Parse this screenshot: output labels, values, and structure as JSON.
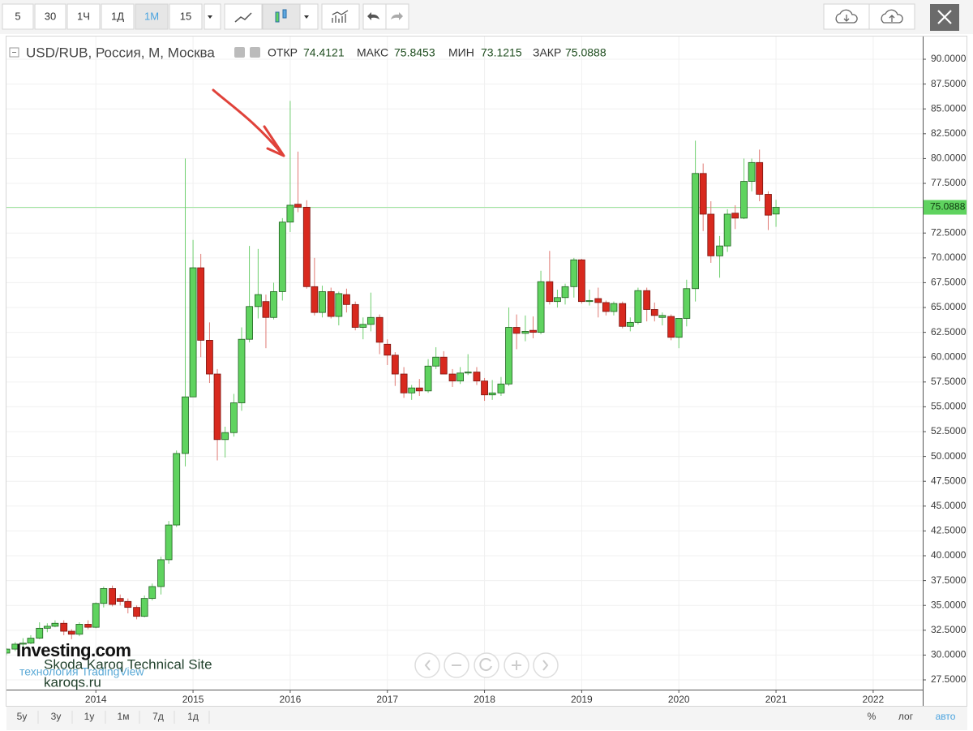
{
  "chart_data": {
    "type": "candlestick",
    "title": "USD/RUB, Россия, М, Москва",
    "ohlc_labels": [
      "ОТКР",
      "МАКС",
      "МИН",
      "ЗАКР"
    ],
    "x": [
      2013.08,
      2013.17,
      2013.25,
      2013.33,
      2013.42,
      2013.5,
      2013.58,
      2013.67,
      2013.75,
      2013.83,
      2013.92,
      2014,
      2014.08,
      2014.17,
      2014.25,
      2014.33,
      2014.42,
      2014.5,
      2014.58,
      2014.67,
      2014.75,
      2014.83,
      2014.92,
      2015,
      2015.08,
      2015.17,
      2015.25,
      2015.33,
      2015.42,
      2015.5,
      2015.58,
      2015.67,
      2015.75,
      2015.83,
      2015.92,
      2016,
      2016.08,
      2016.17,
      2016.25,
      2016.33,
      2016.42,
      2016.5,
      2016.58,
      2016.67,
      2016.75,
      2016.83,
      2016.92,
      2017,
      2017.08,
      2017.17,
      2017.25,
      2017.33,
      2017.42,
      2017.5,
      2017.58,
      2017.67,
      2017.75,
      2017.83,
      2017.92,
      2018,
      2018.08,
      2018.17,
      2018.25,
      2018.33,
      2018.42,
      2018.5,
      2018.58,
      2018.67,
      2018.75,
      2018.83,
      2018.92,
      2019,
      2019.08,
      2019.17,
      2019.25,
      2019.33,
      2019.42,
      2019.5,
      2019.58,
      2019.67,
      2019.75,
      2019.83,
      2019.92,
      2020,
      2020.08,
      2020.17,
      2020.25,
      2020.33,
      2020.42,
      2020.5,
      2020.58,
      2020.67,
      2020.75,
      2020.83,
      2020.92,
      2021
    ],
    "open": [
      30.2,
      30.6,
      31.1,
      31.2,
      31.7,
      32.7,
      32.9,
      33.2,
      32.4,
      32.1,
      33.1,
      32.8,
      35.2,
      36.7,
      35.7,
      35.4,
      34.8,
      33.9,
      35.7,
      36.9,
      39.6,
      43.1,
      50.3,
      56.0,
      69.0,
      61.7,
      58.3,
      51.7,
      52.4,
      55.4,
      61.8,
      65.1,
      65.6,
      64.0,
      66.6,
      73.6,
      75.4,
      75.1,
      67.1,
      64.5,
      66.6,
      64.1,
      66.3,
      65.3,
      63.0,
      63.3,
      64.0,
      61.3,
      60.2,
      58.3,
      56.4,
      56.9,
      56.6,
      59.1,
      60.0,
      58.3,
      57.6,
      58.4,
      58.5,
      57.6,
      56.2,
      56.4,
      57.3,
      63.0,
      62.4,
      62.7,
      62.5,
      67.6,
      65.6,
      66.0,
      67.1,
      69.8,
      65.6,
      65.9,
      65.5,
      64.6,
      65.4,
      63.1,
      63.5,
      66.7,
      64.8,
      64.0,
      64.1,
      62.0,
      63.9,
      66.9,
      78.5,
      74.4,
      70.2,
      71.2,
      74.5,
      74.0,
      77.7,
      79.6,
      76.4,
      74.4121
    ],
    "high": [
      30.7,
      31.3,
      31.7,
      32.0,
      33.3,
      33.2,
      33.5,
      33.5,
      32.6,
      33.3,
      33.5,
      35.3,
      36.9,
      37.0,
      36.1,
      35.7,
      35.0,
      36.0,
      37.2,
      39.9,
      43.5,
      50.6,
      80.0,
      71.8,
      70.4,
      63.5,
      58.8,
      53.0,
      56.3,
      63.0,
      71.2,
      70.9,
      66.3,
      67.5,
      74.0,
      85.8,
      80.7,
      75.8,
      70.0,
      67.2,
      67.0,
      66.6,
      66.9,
      65.6,
      64.0,
      66.5,
      64.3,
      61.8,
      60.5,
      59.0,
      57.2,
      57.8,
      59.8,
      61.0,
      60.6,
      58.8,
      59.0,
      60.3,
      59.0,
      57.9,
      57.7,
      58.0,
      65.0,
      64.3,
      64.2,
      64.1,
      68.7,
      70.7,
      66.8,
      67.4,
      70.0,
      69.9,
      66.8,
      67.0,
      65.7,
      65.6,
      65.6,
      64.0,
      67.0,
      67.0,
      65.5,
      64.5,
      64.3,
      63.9,
      67.8,
      81.8,
      79.5,
      75.7,
      72.2,
      74.9,
      75.3,
      80.0,
      80.0,
      80.9,
      76.7,
      75.8453
    ],
    "low": [
      30.0,
      30.4,
      30.8,
      31.1,
      31.6,
      32.3,
      32.8,
      32.0,
      31.6,
      31.9,
      32.6,
      32.7,
      34.8,
      34.9,
      35.0,
      34.2,
      33.6,
      33.8,
      35.5,
      36.1,
      39.2,
      42.9,
      49.0,
      56.0,
      60.0,
      57.4,
      49.6,
      49.9,
      52.0,
      54.6,
      61.5,
      63.9,
      60.9,
      63.8,
      65.7,
      72.6,
      74.6,
      66.9,
      64.2,
      64.0,
      63.9,
      63.2,
      64.5,
      62.7,
      61.8,
      62.6,
      60.3,
      59.2,
      57.1,
      55.9,
      55.7,
      56.1,
      56.4,
      58.8,
      58.3,
      57.0,
      57.3,
      58.2,
      57.2,
      55.6,
      55.7,
      56.1,
      57.1,
      60.8,
      61.6,
      61.9,
      62.3,
      65.3,
      65.0,
      65.3,
      66.0,
      65.4,
      65.2,
      64.0,
      64.2,
      64.2,
      62.9,
      62.6,
      63.3,
      63.6,
      63.6,
      63.2,
      61.7,
      60.9,
      63.1,
      65.6,
      72.7,
      69.5,
      68.0,
      70.6,
      72.9,
      73.9,
      76.7,
      75.7,
      72.8,
      73.1215
    ],
    "close": [
      30.6,
      31.1,
      31.2,
      31.7,
      32.7,
      32.9,
      33.2,
      32.4,
      32.1,
      33.1,
      32.8,
      35.2,
      36.7,
      35.1,
      35.4,
      34.8,
      33.9,
      35.7,
      36.9,
      39.6,
      43.1,
      50.3,
      56.0,
      69.0,
      61.7,
      58.3,
      51.7,
      52.4,
      55.4,
      61.8,
      65.1,
      66.3,
      64.0,
      66.6,
      73.6,
      75.3,
      75.1,
      67.1,
      64.5,
      66.6,
      64.1,
      66.4,
      65.3,
      63.0,
      63.3,
      64.0,
      61.5,
      60.2,
      58.3,
      56.4,
      56.9,
      56.6,
      59.1,
      60.0,
      58.3,
      57.6,
      58.4,
      58.5,
      57.6,
      56.2,
      56.4,
      57.3,
      63.0,
      62.4,
      62.6,
      62.5,
      67.6,
      65.6,
      66.0,
      67.1,
      69.8,
      65.6,
      65.7,
      65.5,
      64.6,
      65.4,
      63.1,
      63.5,
      66.7,
      64.8,
      64.2,
      64.2,
      62.0,
      63.9,
      66.9,
      78.5,
      74.4,
      70.2,
      71.2,
      74.4,
      74.0,
      77.7,
      79.6,
      76.4,
      74.3,
      75.0888
    ],
    "up_color": "#5fd35f",
    "down_color": "#d8291e",
    "last_price_line": true,
    "xlim": [
      2013.08,
      2022.51
    ],
    "xticks": [
      2014,
      2015,
      2016,
      2017,
      2018,
      2019,
      2020,
      2021,
      2022
    ],
    "ylim": [
      26.52,
      92.29
    ],
    "yticks": [
      {
        "value": 27.5,
        "label": "27.5000"
      },
      {
        "value": 30,
        "label": "30.0000"
      },
      {
        "value": 32.5,
        "label": "32.5000"
      },
      {
        "value": 35,
        "label": "35.0000"
      },
      {
        "value": 37.5,
        "label": "37.5000"
      },
      {
        "value": 40,
        "label": "40.0000"
      },
      {
        "value": 42.5,
        "label": "42.5000"
      },
      {
        "value": 45,
        "label": "45.0000"
      },
      {
        "value": 47.5,
        "label": "47.5000"
      },
      {
        "value": 50,
        "label": "50.0000"
      },
      {
        "value": 52.5,
        "label": "52.5000"
      },
      {
        "value": 55,
        "label": "55.0000"
      },
      {
        "value": 57.5,
        "label": "57.5000"
      },
      {
        "value": 60,
        "label": "60.0000"
      },
      {
        "value": 62.5,
        "label": "62.5000"
      },
      {
        "value": 65,
        "label": "65.0000"
      },
      {
        "value": 67.5,
        "label": "67.5000"
      },
      {
        "value": 70,
        "label": "70.0000"
      },
      {
        "value": 72.5,
        "label": "72.5000"
      },
      {
        "value": 75,
        "label": "75.0000"
      },
      {
        "value": 77.5,
        "label": "77.5000"
      },
      {
        "value": 80,
        "label": "80.0000"
      },
      {
        "value": 82.5,
        "label": "82.5000"
      },
      {
        "value": 85,
        "label": "85.0000"
      },
      {
        "value": 87.5,
        "label": "87.5000"
      },
      {
        "value": 90,
        "label": "90.0000"
      }
    ],
    "grid": true
  },
  "toolbar": {
    "intervals": [
      "5",
      "30",
      "1Ч",
      "1Д",
      "1М",
      "15"
    ]
  },
  "range_buttons": [
    "5y",
    "3y",
    "1y",
    "1м",
    "7д",
    "1д"
  ],
  "scale_buttons": [
    "%",
    "лог",
    "авто"
  ],
  "watermark": {
    "logo": "Investing.com",
    "tagline": "технология TradingView",
    "site": "Skoda Karoq Technical Site",
    "url": "karoqs.ru"
  }
}
